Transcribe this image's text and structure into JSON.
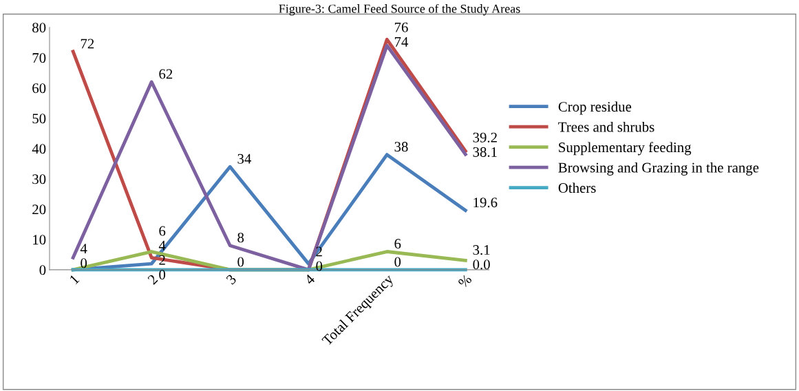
{
  "chart_data": {
    "type": "line",
    "title": "Figure-3: Camel Feed Source of the Study Areas",
    "categories": [
      "1",
      "2",
      "3",
      "4",
      "Total Frequency",
      "%"
    ],
    "series": [
      {
        "name": "Crop residue",
        "color": "#4a7ebb",
        "values": [
          0,
          2,
          34,
          2,
          38,
          19.6
        ],
        "value_labels": [
          "0",
          "2",
          "34",
          "2",
          "38",
          "19.6"
        ]
      },
      {
        "name": "Trees and shrubs",
        "color": "#be4b48",
        "values": [
          72,
          4,
          0,
          0,
          76,
          39.2
        ],
        "value_labels": [
          "72",
          "4",
          null,
          null,
          "76",
          "39.2"
        ]
      },
      {
        "name": "Supplementary feeding",
        "color": "#98b954",
        "values": [
          0,
          6,
          0,
          0,
          6,
          3.1
        ],
        "value_labels": [
          null,
          "6",
          null,
          null,
          "6",
          "3.1"
        ]
      },
      {
        "name": "Browsing and Grazing in the range",
        "color": "#7d60a0",
        "values": [
          4,
          62,
          8,
          0,
          74,
          38.1
        ],
        "value_labels": [
          "4",
          "62",
          "8",
          null,
          "74",
          "38.1"
        ]
      },
      {
        "name": "Others",
        "color": "#46aac5",
        "values": [
          0,
          0,
          0,
          0,
          0,
          0
        ],
        "value_labels": [
          null,
          "0",
          "0",
          "0",
          "0",
          "0.0"
        ]
      }
    ],
    "ylim": [
      0,
      80
    ],
    "yticks": [
      0,
      10,
      20,
      30,
      40,
      50,
      60,
      70,
      80
    ],
    "legend": "right",
    "grid": false,
    "marker": "none",
    "line_style": "solid"
  }
}
